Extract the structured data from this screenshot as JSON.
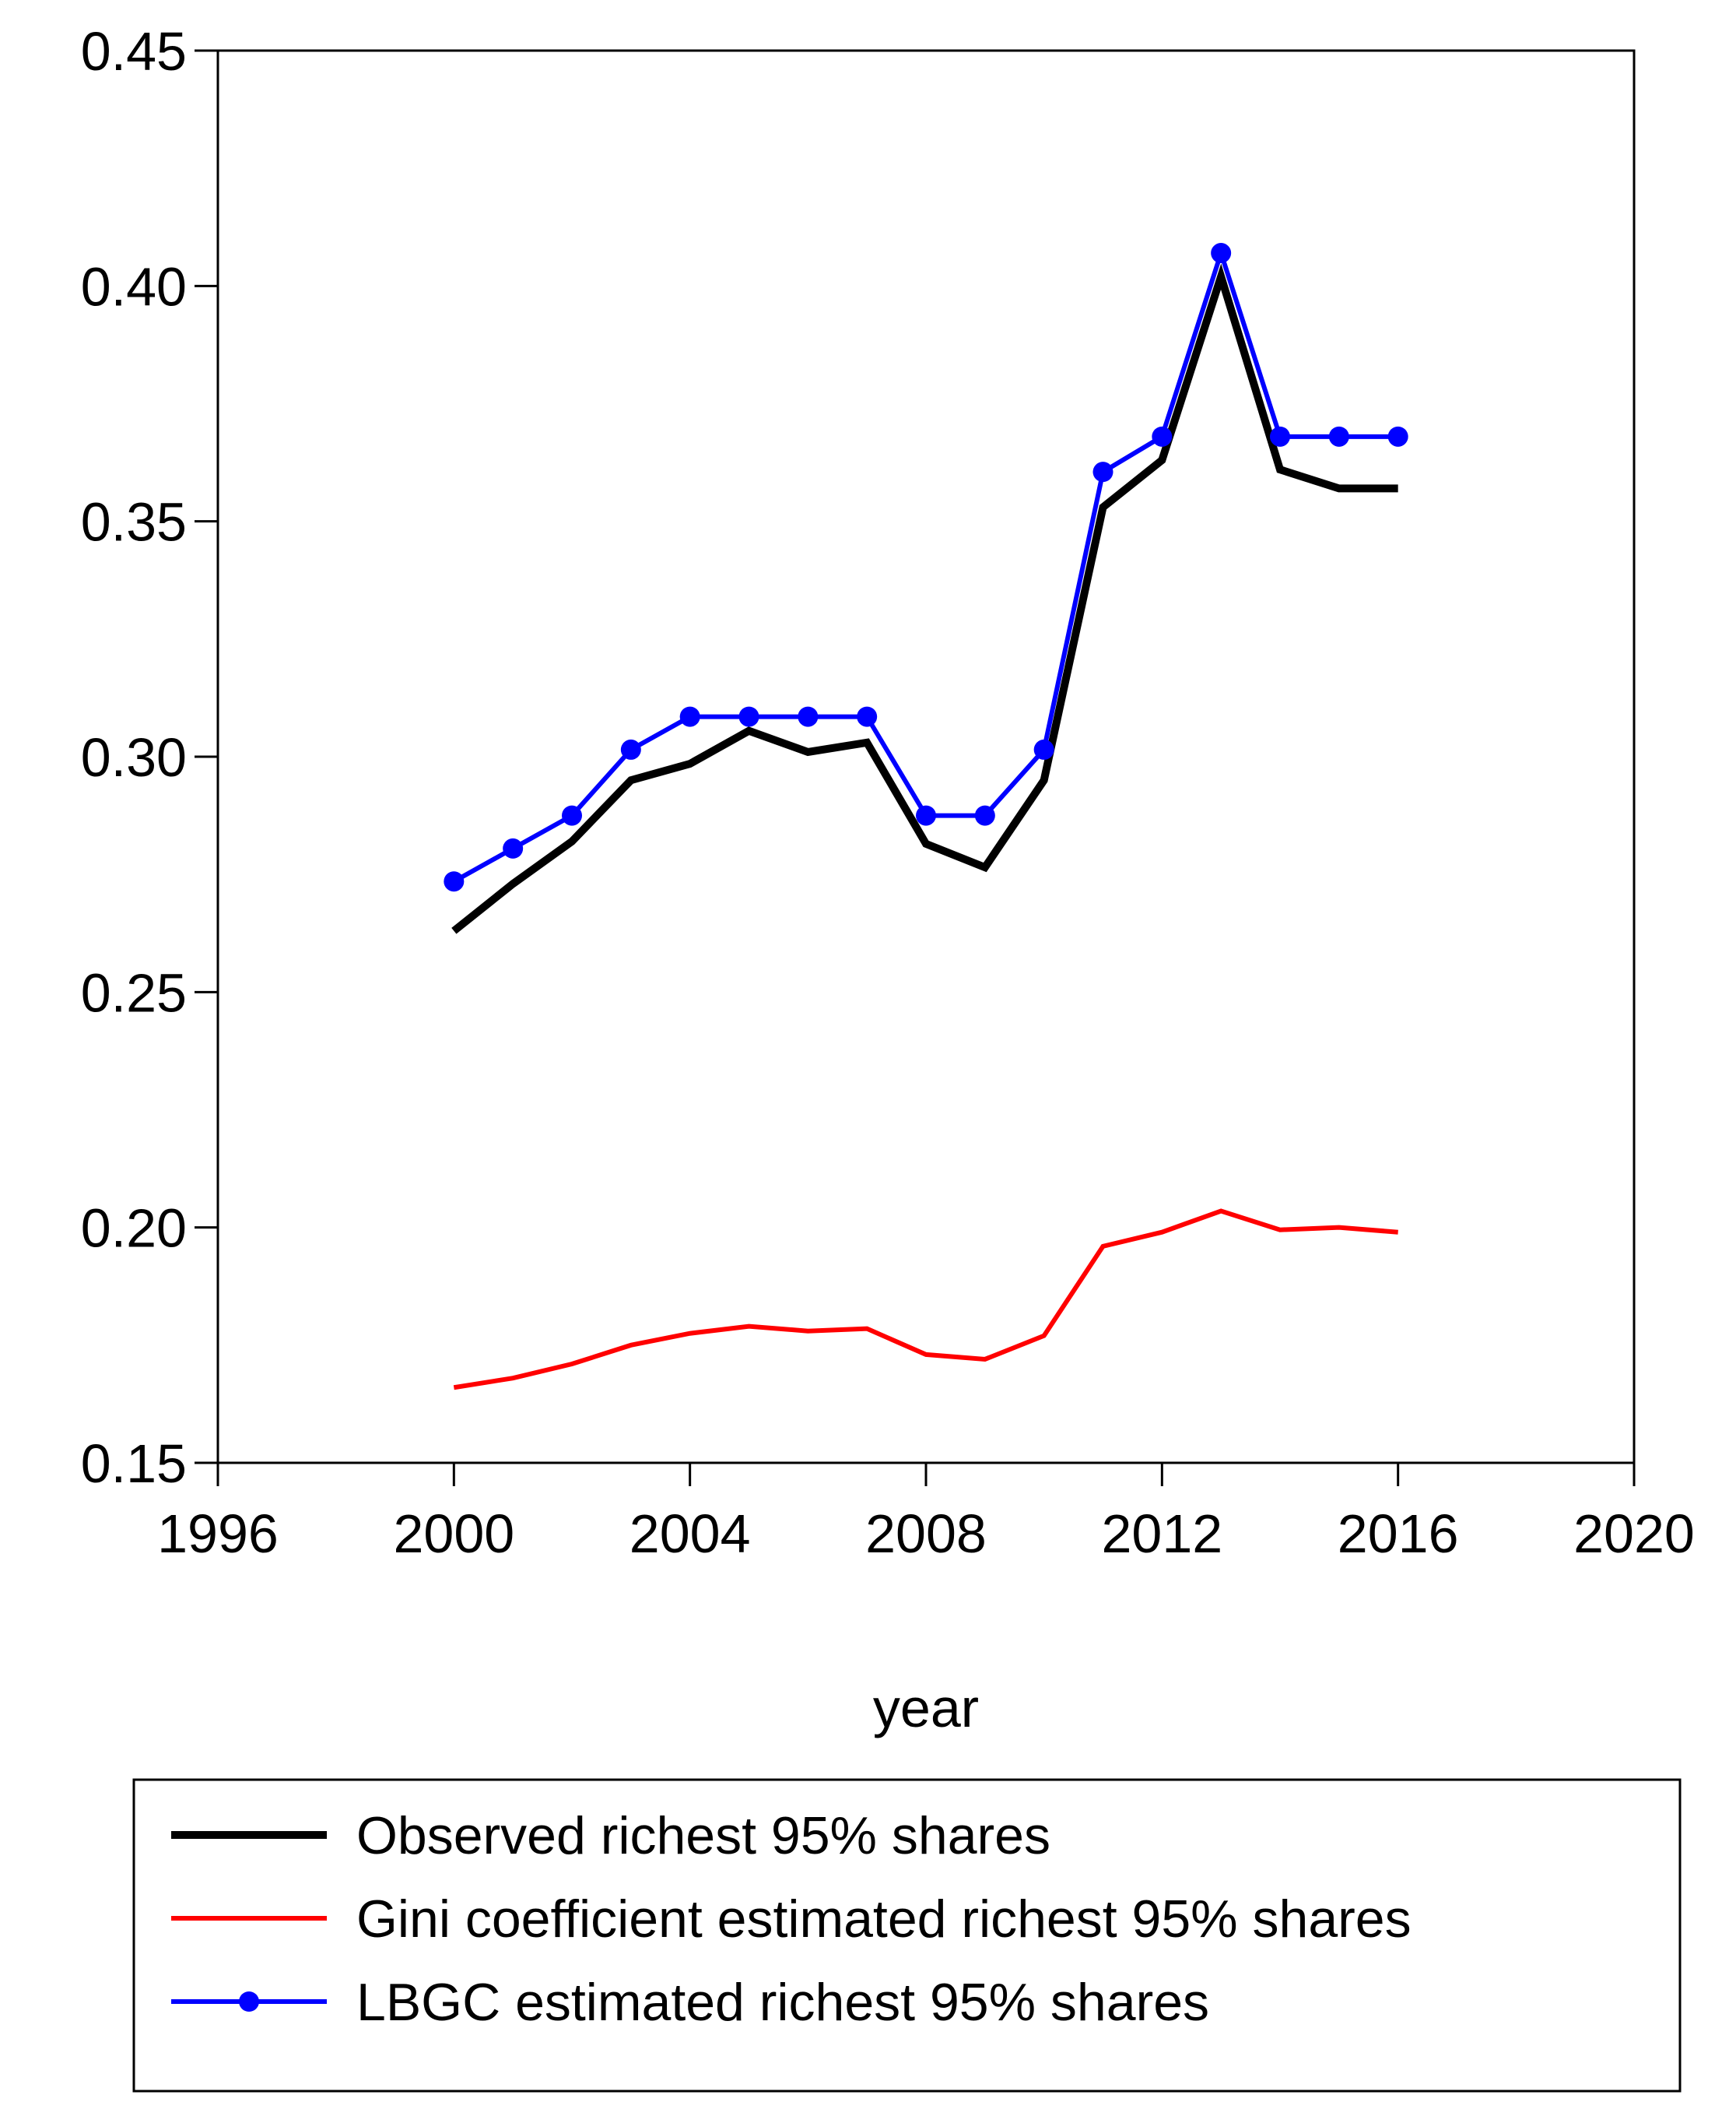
{
  "chart_data": {
    "type": "line",
    "x_label": "year",
    "x": [
      2000,
      2001,
      2002,
      2003,
      2004,
      2005,
      2006,
      2007,
      2008,
      2009,
      2010,
      2011,
      2012,
      2013,
      2014,
      2015,
      2016
    ],
    "series": [
      {
        "name": "Observed richest 95% shares",
        "color": "#000000",
        "values": [
          0.263,
          0.273,
          0.282,
          0.295,
          0.2985,
          0.3055,
          0.301,
          0.303,
          0.2815,
          0.2765,
          0.295,
          0.353,
          0.363,
          0.402,
          0.361,
          0.357,
          0.357
        ]
      },
      {
        "name": "Gini coefficient estimated richest 95% shares",
        "color": "#ff0000",
        "values": [
          0.166,
          0.168,
          0.171,
          0.175,
          0.1775,
          0.179,
          0.178,
          0.1785,
          0.173,
          0.172,
          0.177,
          0.196,
          0.199,
          0.2035,
          0.1995,
          0.2,
          0.199
        ]
      },
      {
        "name": "LBGC estimated richest 95% shares",
        "color": "#0000ff",
        "marker": "circle",
        "values": [
          0.2735,
          0.2805,
          0.2875,
          0.3015,
          0.3085,
          0.3085,
          0.3085,
          0.3085,
          0.2875,
          0.2875,
          0.3015,
          0.3605,
          0.368,
          0.407,
          0.368,
          0.368,
          0.368
        ]
      }
    ],
    "xlim": [
      1996,
      2020
    ],
    "xticks": [
      1996,
      2000,
      2004,
      2008,
      2012,
      2016,
      2020
    ],
    "ylim": [
      0.15,
      0.45
    ],
    "yticks": [
      0.15,
      {
        "value": 0.2,
        "label": "0.20"
      },
      0.25,
      {
        "value": 0.3,
        "label": "0.30"
      },
      0.35,
      {
        "value": 0.4,
        "label": "0.40"
      },
      0.45
    ],
    "grid": false
  }
}
